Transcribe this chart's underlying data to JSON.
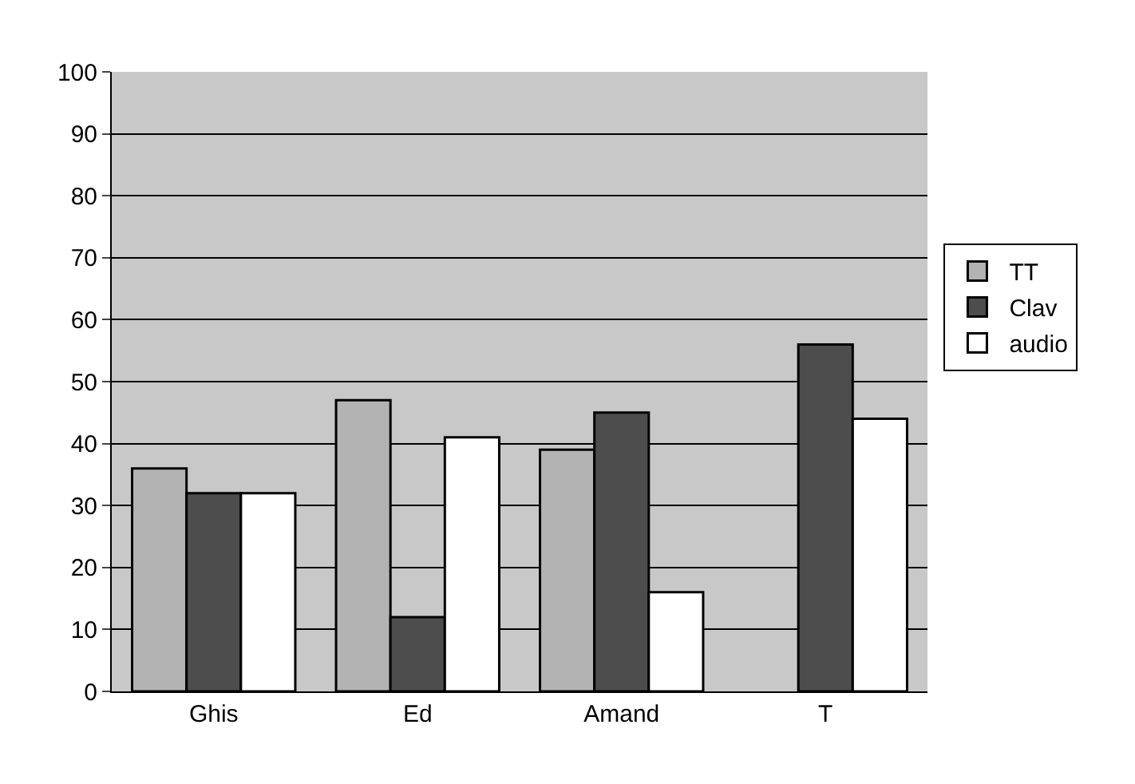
{
  "chart_data": {
    "type": "bar",
    "categories": [
      "Ghis",
      "Ed",
      "Amand",
      "T"
    ],
    "series": [
      {
        "name": "TT",
        "color": "#b3b3b3",
        "values": [
          36,
          47,
          39,
          null
        ]
      },
      {
        "name": "Clav",
        "color": "#4d4d4d",
        "values": [
          32,
          12,
          45,
          56
        ]
      },
      {
        "name": "audio",
        "color": "#ffffff",
        "values": [
          32,
          41,
          16,
          44
        ]
      }
    ],
    "ylim": [
      0,
      100
    ],
    "yticks": [
      0,
      10,
      20,
      30,
      40,
      50,
      60,
      70,
      80,
      90,
      100
    ],
    "grid": "y",
    "legend": "right"
  }
}
